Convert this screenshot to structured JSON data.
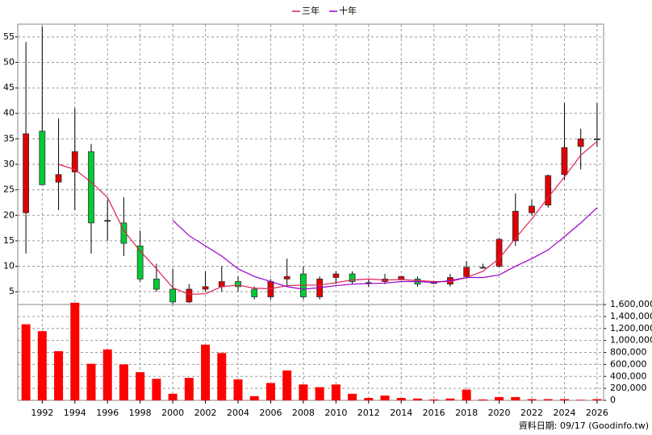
{
  "chart_data": [
    {
      "type": "candlestick",
      "x": [
        1991,
        1992,
        1993,
        1994,
        1995,
        1996,
        1997,
        1998,
        1999,
        2000,
        2001,
        2002,
        2003,
        2004,
        2005,
        2006,
        2007,
        2008,
        2009,
        2010,
        2011,
        2012,
        2013,
        2014,
        2015,
        2016,
        2017,
        2018,
        2019,
        2020,
        2021,
        2022,
        2023,
        2024,
        2025,
        2026
      ],
      "open": [
        20.5,
        36.5,
        26.5,
        28.5,
        32.5,
        19,
        18.5,
        14,
        7.5,
        5.5,
        3,
        5.5,
        6,
        7,
        5.5,
        4,
        7.5,
        8.5,
        4,
        7.8,
        8.5,
        6.8,
        7,
        7.5,
        7.5,
        6.8,
        6.5,
        8,
        9.8,
        10,
        15,
        20.5,
        22,
        28,
        33.5,
        35
      ],
      "high": [
        54,
        57,
        39,
        41,
        34,
        23,
        23.5,
        17,
        10.5,
        9.5,
        6.5,
        9,
        10,
        8,
        6,
        7.5,
        11.5,
        10,
        8,
        9,
        9,
        7.5,
        8.5,
        8,
        8,
        7,
        8.5,
        11,
        10.5,
        15.5,
        24.3,
        23,
        28,
        42,
        37,
        42
      ],
      "low": [
        12.5,
        26,
        21,
        21,
        12.5,
        15,
        12,
        7,
        5,
        2.5,
        2.8,
        5,
        5,
        5,
        3.5,
        3.5,
        6,
        3.5,
        3.5,
        6.5,
        6.5,
        6,
        6.5,
        7.5,
        6,
        6.5,
        6,
        7.5,
        9.5,
        9.8,
        14,
        20,
        21.5,
        27,
        29,
        33.5
      ],
      "close": [
        36,
        26,
        28,
        32.5,
        18.5,
        19,
        14.5,
        7.5,
        5.5,
        3,
        5.5,
        6,
        7,
        6,
        4,
        7,
        8,
        4,
        7.5,
        8.5,
        7,
        6.8,
        7.5,
        8,
        6.5,
        6.8,
        7.8,
        9.8,
        9.8,
        15.3,
        20.8,
        21.8,
        27.8,
        33.3,
        35,
        35
      ],
      "up_color": "#e00000",
      "down_color": "#00cc33",
      "series": [
        {
          "name": "三年",
          "color": "#dd2255",
          "values": [
            null,
            null,
            30,
            29,
            26.5,
            23.5,
            17,
            13,
            9.5,
            5.8,
            4.5,
            4.6,
            6,
            6.3,
            5.7,
            5.6,
            6.2,
            6.3,
            6.3,
            6.8,
            7.3,
            7.5,
            7.3,
            7.4,
            7.2,
            7,
            7,
            7.8,
            9,
            11.5,
            15.5,
            19.3,
            23.5,
            27.5,
            31.8,
            34.5
          ]
        },
        {
          "name": "十年",
          "color": "#9900cc",
          "values": [
            null,
            null,
            null,
            null,
            null,
            null,
            null,
            null,
            null,
            19,
            16,
            14,
            12,
            9.5,
            8,
            7,
            6,
            5.5,
            5.8,
            6.2,
            6.5,
            6.6,
            6.7,
            7,
            7,
            6.8,
            7.2,
            7.8,
            7.8,
            8.3,
            10,
            11.5,
            13.2,
            15.8,
            18.5,
            21.5
          ]
        }
      ],
      "xlim": [
        1990.5,
        2026.4
      ],
      "ylim": [
        2.5,
        57.5
      ],
      "yticks": [
        5,
        10,
        15,
        20,
        25,
        30,
        35,
        40,
        45,
        50,
        55
      ],
      "grid": true
    },
    {
      "type": "bar",
      "x": [
        1991,
        1992,
        1993,
        1994,
        1995,
        1996,
        1997,
        1998,
        1999,
        2000,
        2001,
        2002,
        2003,
        2004,
        2005,
        2006,
        2007,
        2008,
        2009,
        2010,
        2011,
        2012,
        2013,
        2014,
        2015,
        2016,
        2017,
        2018,
        2019,
        2020,
        2021,
        2022,
        2023,
        2024,
        2025,
        2026
      ],
      "values": [
        1270000,
        1155000,
        820000,
        1630000,
        610000,
        850000,
        600000,
        470000,
        360000,
        110000,
        375000,
        930000,
        790000,
        350000,
        70000,
        290000,
        500000,
        265000,
        220000,
        265000,
        110000,
        40000,
        80000,
        40000,
        30000,
        15000,
        30000,
        180000,
        15000,
        55000,
        55000,
        20000,
        20000,
        20000,
        10000,
        20000
      ],
      "color": "#ff0000",
      "xlim": [
        1990.5,
        2026.4
      ],
      "ylim": [
        0,
        1600000
      ],
      "xticks": [
        1992,
        1994,
        1996,
        1998,
        2000,
        2002,
        2004,
        2006,
        2008,
        2010,
        2012,
        2014,
        2016,
        2018,
        2020,
        2022,
        2024,
        2026
      ],
      "yticks": [
        0,
        {
          "value": 200000,
          "label": "200,000"
        },
        {
          "value": 400000,
          "label": "400,000"
        },
        {
          "value": 600000,
          "label": "600,000"
        },
        {
          "value": 800000,
          "label": "800,000"
        },
        {
          "value": 1000000,
          "label": "1,000,000"
        },
        {
          "value": 1200000,
          "label": "1,200,000"
        },
        {
          "value": 1400000,
          "label": "1,400,000"
        },
        {
          "value": 1600000,
          "label": "1,600,000"
        }
      ],
      "grid": true
    }
  ],
  "footer": "資料日期: 09/17 (Goodinfo.tw)"
}
